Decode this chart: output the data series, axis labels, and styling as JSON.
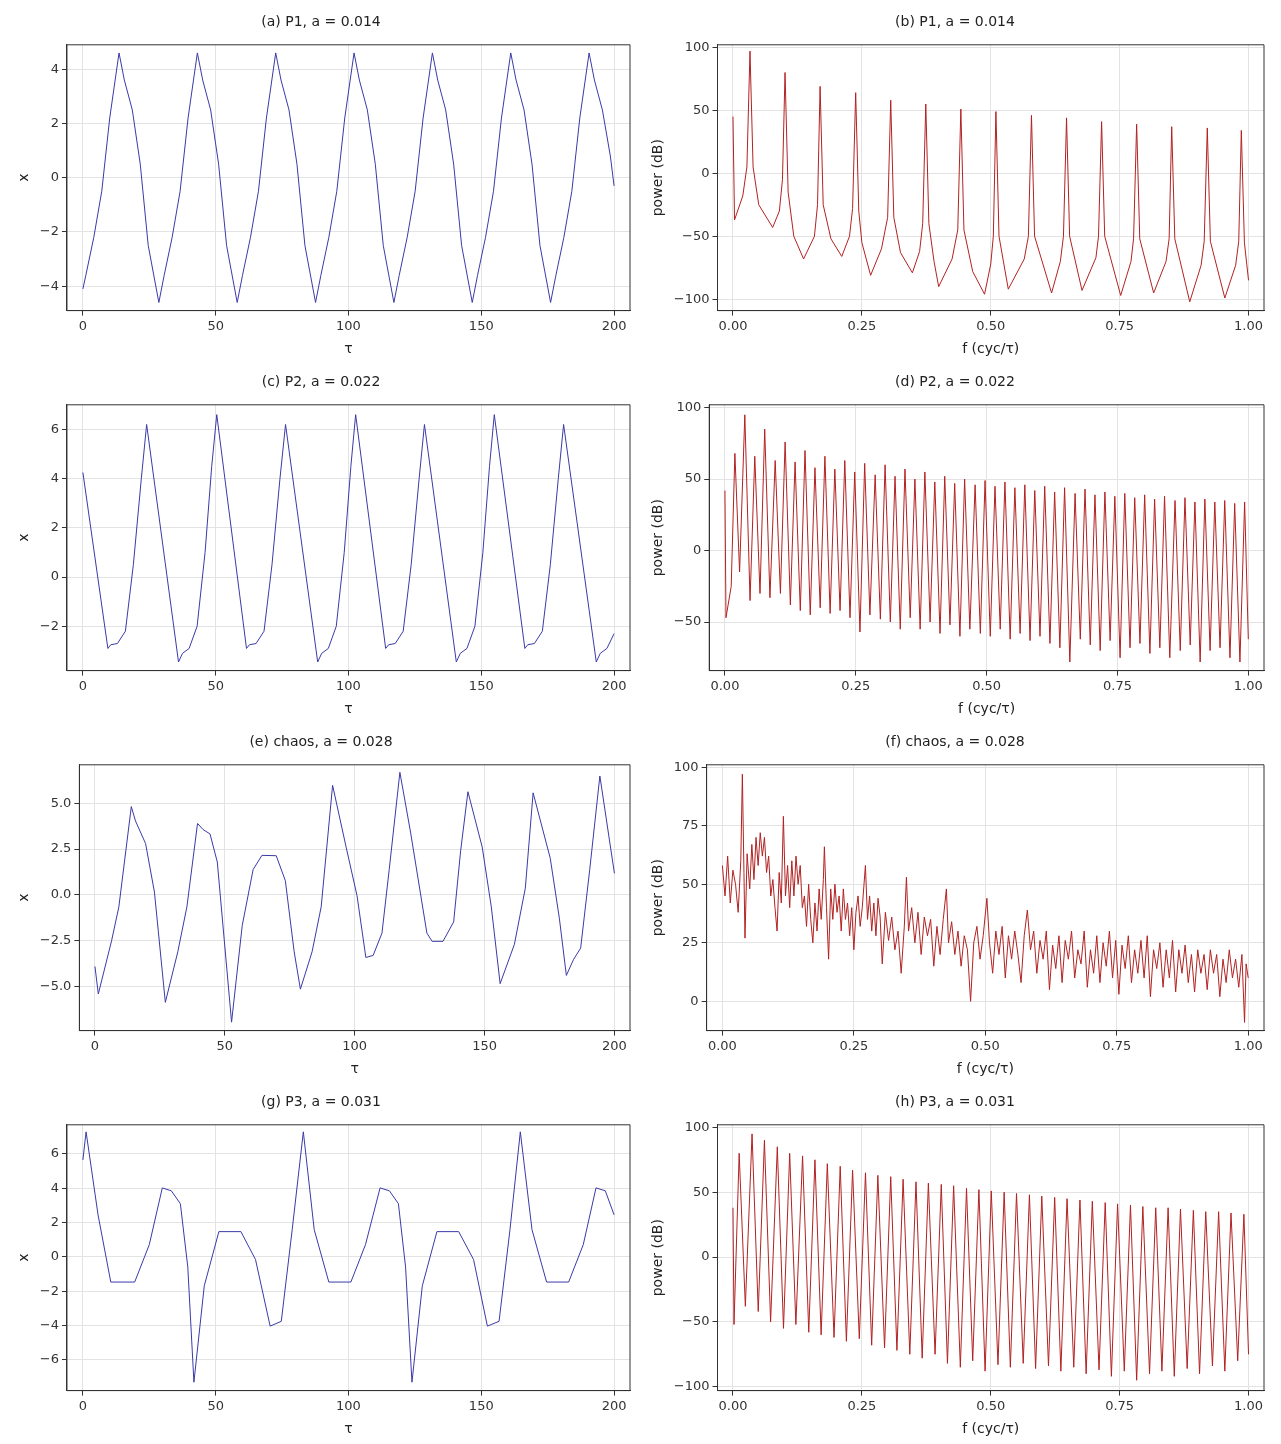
{
  "chart_data": [
    {
      "type": "line",
      "title": "(a) P1, a = 0.014",
      "xlabel": "τ",
      "ylabel": "x",
      "color": "#3a3aa8",
      "grid": true,
      "xlim": [
        -6,
        206
      ],
      "ylim": [
        -4.9,
        4.9
      ],
      "xticks": [
        0,
        50,
        100,
        150,
        200
      ],
      "yticks": [
        {
          "value": -4,
          "label": "−4"
        },
        {
          "value": -2,
          "label": "−2"
        },
        0,
        2,
        4
      ],
      "x": [
        0,
        1.1,
        4.1,
        7.1,
        10.1,
        13.6,
        15.6,
        18.6,
        21.6,
        24.6,
        28.6,
        30.6,
        33.6,
        36.6,
        39.6,
        43.1,
        45.1,
        48.1,
        51.1,
        54.1,
        58.1,
        60.1,
        63.1,
        66.1,
        69.1,
        72.6,
        74.6,
        77.6,
        80.6,
        83.6,
        87.6,
        89.6,
        92.6,
        95.6,
        98.6,
        102.1,
        104.1,
        107.1,
        110.1,
        113.1,
        117.1,
        119.1,
        122.1,
        125.1,
        128.1,
        131.6,
        133.6,
        136.6,
        139.6,
        142.6,
        146.6,
        148.6,
        151.6,
        154.6,
        157.6,
        161.1,
        163.1,
        166.1,
        169.1,
        172.1,
        176.1,
        178.1,
        181.1,
        184.1,
        187.1,
        190.6,
        192.6,
        195.6,
        198.6,
        200
      ],
      "values": [
        -4.1,
        -3.6,
        -2.2,
        -0.5,
        2.2,
        4.6,
        3.6,
        2.5,
        0.5,
        -2.5,
        -4.6,
        -3.6,
        -2.2,
        -0.5,
        2.2,
        4.6,
        3.6,
        2.5,
        0.5,
        -2.5,
        -4.6,
        -3.6,
        -2.2,
        -0.5,
        2.2,
        4.6,
        3.6,
        2.5,
        0.5,
        -2.5,
        -4.6,
        -3.6,
        -2.2,
        -0.5,
        2.2,
        4.6,
        3.6,
        2.5,
        0.5,
        -2.5,
        -4.6,
        -3.6,
        -2.2,
        -0.5,
        2.2,
        4.6,
        3.6,
        2.5,
        0.5,
        -2.5,
        -4.6,
        -3.6,
        -2.2,
        -0.5,
        2.2,
        4.6,
        3.6,
        2.5,
        0.5,
        -2.5,
        -4.6,
        -3.6,
        -2.2,
        -0.5,
        2.2,
        4.6,
        3.6,
        2.5,
        0.8,
        -0.3
      ]
    },
    {
      "type": "line",
      "title": "(b) P1, a = 0.014",
      "xlabel": "f (cyc/τ)",
      "ylabel": "power (dB)",
      "color": "#b22222",
      "grid": true,
      "xlim": [
        -0.03,
        1.03
      ],
      "ylim": [
        -109,
        102
      ],
      "xticks": [
        {
          "value": 0,
          "label": "0.00"
        },
        {
          "value": 0.25,
          "label": "0.25"
        },
        {
          "value": 0.5,
          "label": "0.50"
        },
        {
          "value": 0.75,
          "label": "0.75"
        },
        {
          "value": 1,
          "label": "1.00"
        }
      ],
      "yticks": [
        {
          "value": -100,
          "label": "−100"
        },
        {
          "value": -50,
          "label": "−50"
        },
        0,
        50,
        100
      ],
      "x": [
        0,
        0.003,
        0.019,
        0.027,
        0.033,
        0.039,
        0.05,
        0.077,
        0.09,
        0.096,
        0.101,
        0.107,
        0.118,
        0.137,
        0.158,
        0.164,
        0.169,
        0.175,
        0.19,
        0.211,
        0.226,
        0.232,
        0.238,
        0.244,
        0.25,
        0.267,
        0.288,
        0.3,
        0.306,
        0.312,
        0.325,
        0.348,
        0.362,
        0.368,
        0.374,
        0.38,
        0.39,
        0.399,
        0.425,
        0.436,
        0.442,
        0.448,
        0.465,
        0.488,
        0.5,
        0.505,
        0.51,
        0.516,
        0.534,
        0.565,
        0.573,
        0.579,
        0.585,
        0.618,
        0.635,
        0.641,
        0.647,
        0.653,
        0.677,
        0.704,
        0.709,
        0.715,
        0.721,
        0.752,
        0.772,
        0.777,
        0.783,
        0.789,
        0.816,
        0.84,
        0.846,
        0.851,
        0.857,
        0.886,
        0.908,
        0.914,
        0.92,
        0.926,
        0.954,
        0.975,
        0.981,
        0.986,
        0.992,
        1
      ],
      "values": [
        45,
        -37,
        -18,
        5,
        97,
        5,
        -25,
        -43,
        -30,
        -5,
        80,
        -15,
        -50,
        -68,
        -50,
        -25,
        69,
        -25,
        -52,
        -66,
        -50,
        -28,
        64,
        -30,
        -55,
        -81,
        -60,
        -35,
        58,
        -35,
        -63,
        -79,
        -62,
        -40,
        55,
        -40,
        -70,
        -90,
        -68,
        -45,
        51,
        -45,
        -78,
        -96,
        -72,
        -50,
        49,
        -50,
        -92,
        -68,
        -50,
        46,
        -50,
        -95,
        -70,
        -50,
        44,
        -50,
        -93,
        -67,
        -50,
        41,
        -50,
        -97,
        -70,
        -52,
        39,
        -52,
        -95,
        -70,
        -52,
        37,
        -52,
        -102,
        -73,
        -54,
        36,
        -54,
        -99,
        -73,
        -54,
        34,
        -55,
        -85
      ]
    },
    {
      "type": "line",
      "title": "(c) P2, a = 0.022",
      "xlabel": "τ",
      "ylabel": "x",
      "color": "#3a3aa8",
      "grid": true,
      "xlim": [
        -6,
        206
      ],
      "ylim": [
        -3.8,
        7
      ],
      "xticks": [
        0,
        50,
        100,
        150,
        200
      ],
      "yticks": [
        {
          "value": -2,
          "label": "−2"
        },
        0,
        2,
        4,
        6
      ],
      "x": [
        0,
        9.4,
        10.5,
        13,
        16,
        19,
        22,
        24,
        36,
        37.5,
        40,
        43,
        46,
        48.5,
        50.4,
        61.6,
        62.7,
        65.2,
        68.2,
        71.2,
        74.2,
        76.3,
        88.4,
        89.9,
        92.4,
        95.4,
        98.4,
        100.9,
        102.7,
        114,
        115.1,
        117.6,
        120.6,
        123.6,
        126.6,
        128.6,
        140.6,
        142.1,
        144.6,
        147.6,
        150.6,
        153.1,
        154.9,
        166.4,
        167.5,
        170,
        173,
        176,
        179,
        181,
        193.3,
        194.8,
        197.3,
        200
      ],
      "values": [
        4.25,
        -2.9,
        -2.75,
        -2.7,
        -2.2,
        0.5,
        4,
        6.2,
        -3.45,
        -3.1,
        -2.9,
        -2,
        1,
        4.5,
        6.6,
        -2.9,
        -2.75,
        -2.7,
        -2.2,
        0.5,
        4,
        6.2,
        -3.45,
        -3.1,
        -2.9,
        -2,
        1,
        4.5,
        6.6,
        -2.9,
        -2.75,
        -2.7,
        -2.2,
        0.5,
        4,
        6.2,
        -3.45,
        -3.1,
        -2.9,
        -2,
        1,
        4.5,
        6.6,
        -2.9,
        -2.75,
        -2.7,
        -2.2,
        0.5,
        4,
        6.2,
        -3.45,
        -3.1,
        -2.9,
        -2.3
      ]
    },
    {
      "type": "line",
      "title": "(d) P2, a = 0.022",
      "xlabel": "f (cyc/τ)",
      "ylabel": "power (dB)",
      "color": "#b22222",
      "grid": true,
      "xlim": [
        -0.03,
        1.03
      ],
      "ylim": [
        -84,
        102
      ],
      "xticks": [
        {
          "value": 0,
          "label": "0.00"
        },
        {
          "value": 0.25,
          "label": "0.25"
        },
        {
          "value": 0.5,
          "label": "0.50"
        },
        {
          "value": 0.75,
          "label": "0.75"
        },
        {
          "value": 1,
          "label": "1.00"
        }
      ],
      "yticks": [
        {
          "value": -50,
          "label": "−50"
        },
        0,
        50,
        100
      ],
      "x": [
        0,
        0.002,
        0.012,
        0.019,
        0.028,
        0.038,
        0.048,
        0.057,
        0.067,
        0.076,
        0.086,
        0.096,
        0.106,
        0.115,
        0.125,
        0.134,
        0.144,
        0.153,
        0.163,
        0.172,
        0.182,
        0.191,
        0.201,
        0.21,
        0.22,
        0.229,
        0.239,
        0.248,
        0.258,
        0.267,
        0.277,
        0.287,
        0.297,
        0.306,
        0.316,
        0.325,
        0.335,
        0.344,
        0.354,
        0.363,
        0.373,
        0.382,
        0.392,
        0.401,
        0.411,
        0.42,
        0.43,
        0.439,
        0.449,
        0.458,
        0.468,
        0.478,
        0.488,
        0.497,
        0.507,
        0.516,
        0.526,
        0.535,
        0.545,
        0.554,
        0.564,
        0.573,
        0.583,
        0.592,
        0.602,
        0.611,
        0.621,
        0.63,
        0.64,
        0.649,
        0.659,
        0.669,
        0.679,
        0.688,
        0.698,
        0.707,
        0.717,
        0.726,
        0.736,
        0.745,
        0.755,
        0.764,
        0.774,
        0.783,
        0.793,
        0.802,
        0.812,
        0.821,
        0.831,
        0.84,
        0.85,
        0.86,
        0.87,
        0.879,
        0.889,
        0.898,
        0.908,
        0.917,
        0.927,
        0.936,
        0.946,
        0.955,
        0.965,
        0.974,
        0.984,
        0.993,
        1
      ],
      "values": [
        42,
        -47,
        -25,
        68,
        -15,
        95,
        -35,
        66,
        -30,
        85,
        -33,
        63,
        -30,
        76,
        -38,
        62,
        -42,
        70,
        -45,
        58,
        -40,
        66,
        -44,
        57,
        -42,
        63,
        -47,
        55,
        -57,
        61,
        -45,
        53,
        -48,
        60,
        -50,
        52,
        -55,
        57,
        -47,
        50,
        -55,
        55,
        -50,
        48,
        -58,
        52,
        -52,
        47,
        -60,
        50,
        -55,
        46,
        -58,
        49,
        -60,
        45,
        -55,
        48,
        -62,
        44,
        -58,
        46,
        -63,
        42,
        -60,
        45,
        -65,
        41,
        -68,
        44,
        -78,
        40,
        -62,
        43,
        -66,
        39,
        -70,
        41,
        -63,
        38,
        -75,
        40,
        -68,
        37,
        -65,
        39,
        -72,
        36,
        -68,
        38,
        -75,
        35,
        -70,
        37,
        -66,
        34,
        -78,
        36,
        -70,
        34,
        -68,
        35,
        -75,
        33,
        -78,
        34,
        -62
      ]
    },
    {
      "type": "line",
      "title": "(e) chaos, a = 0.028",
      "xlabel": "τ",
      "ylabel": "x",
      "color": "#3a3aa8",
      "grid": true,
      "xlim": [
        -6,
        206
      ],
      "ylim": [
        -7.4,
        7.1
      ],
      "xticks": [
        0,
        50,
        100,
        150,
        200
      ],
      "yticks": [
        {
          "value": -5,
          "label": "−5.0"
        },
        {
          "value": -2.5,
          "label": "−2.5"
        },
        {
          "value": 0,
          "label": "0.0"
        },
        {
          "value": 2.5,
          "label": "2.5"
        },
        {
          "value": 5,
          "label": "5.0"
        }
      ],
      "x": [
        0,
        1.3,
        6.4,
        9.2,
        14,
        15.6,
        19.5,
        22.9,
        27.1,
        31.9,
        35.4,
        39.5,
        41.6,
        44.3,
        47.1,
        52.6,
        56.7,
        60.9,
        64.3,
        69.8,
        73.3,
        76.7,
        79.1,
        83.6,
        87.1,
        91.5,
        96.7,
        100.9,
        104.3,
        107.1,
        110.5,
        113.3,
        117.4,
        121.5,
        127.8,
        129.8,
        134,
        138.1,
        140.8,
        143.6,
        149.1,
        152.6,
        156,
        161.5,
        165.7,
        168.7,
        175.3,
        178.8,
        181.5,
        184.3,
        187,
        190.5,
        194.4,
        200
      ],
      "values": [
        -3.9,
        -5.4,
        -2.5,
        -0.65,
        4.82,
        4.04,
        2.8,
        0.16,
        -5.86,
        -3.1,
        -0.65,
        3.9,
        3.57,
        3.33,
        1.8,
        -6.94,
        -1.67,
        1.39,
        2.16,
        2.14,
        0.78,
        -3.1,
        -5.14,
        -3.1,
        -0.65,
        5.98,
        2.61,
        -0.04,
        -3.41,
        -3.3,
        -2.08,
        1.39,
        6.69,
        3.43,
        -2.08,
        -2.53,
        -2.53,
        -1.47,
        2.41,
        5.63,
        2.61,
        -0.65,
        -4.84,
        -2.69,
        0.37,
        5.57,
        2,
        -1.27,
        -4.39,
        -3.51,
        -2.9,
        1.39,
        6.49,
        1.18
      ]
    },
    {
      "type": "line",
      "title": "(f) chaos, a = 0.028",
      "xlabel": "f (cyc/τ)",
      "ylabel": "power (dB)",
      "color": "#b22222",
      "grid": true,
      "xlim": [
        -0.03,
        1.03
      ],
      "ylim": [
        -12.5,
        101
      ],
      "xticks": [
        {
          "value": 0,
          "label": "0.00"
        },
        {
          "value": 0.25,
          "label": "0.25"
        },
        {
          "value": 0.5,
          "label": "0.50"
        },
        {
          "value": 0.75,
          "label": "0.75"
        },
        {
          "value": 1,
          "label": "1.00"
        }
      ],
      "yticks": [
        0,
        25,
        50,
        75,
        100
      ],
      "x": [
        0,
        0.005,
        0.01,
        0.015,
        0.02,
        0.025,
        0.03,
        0.035,
        0.038,
        0.041,
        0.043,
        0.047,
        0.052,
        0.056,
        0.06,
        0.064,
        0.068,
        0.072,
        0.076,
        0.08,
        0.084,
        0.088,
        0.092,
        0.096,
        0.1,
        0.104,
        0.108,
        0.112,
        0.116,
        0.12,
        0.124,
        0.128,
        0.132,
        0.136,
        0.14,
        0.144,
        0.148,
        0.152,
        0.156,
        0.16,
        0.164,
        0.168,
        0.172,
        0.176,
        0.18,
        0.184,
        0.188,
        0.192,
        0.194,
        0.198,
        0.202,
        0.206,
        0.21,
        0.214,
        0.218,
        0.222,
        0.226,
        0.23,
        0.234,
        0.238,
        0.242,
        0.246,
        0.25,
        0.254,
        0.258,
        0.262,
        0.266,
        0.272,
        0.276,
        0.28,
        0.284,
        0.288,
        0.292,
        0.296,
        0.3,
        0.304,
        0.31,
        0.316,
        0.322,
        0.328,
        0.334,
        0.34,
        0.346,
        0.35,
        0.354,
        0.36,
        0.366,
        0.372,
        0.378,
        0.384,
        0.39,
        0.396,
        0.402,
        0.408,
        0.414,
        0.42,
        0.426,
        0.43,
        0.436,
        0.442,
        0.448,
        0.454,
        0.46,
        0.466,
        0.472,
        0.478,
        0.484,
        0.49,
        0.496,
        0.503,
        0.508,
        0.514,
        0.52,
        0.526,
        0.532,
        0.538,
        0.544,
        0.55,
        0.556,
        0.562,
        0.568,
        0.574,
        0.58,
        0.586,
        0.592,
        0.598,
        0.604,
        0.61,
        0.616,
        0.622,
        0.628,
        0.634,
        0.64,
        0.646,
        0.652,
        0.658,
        0.664,
        0.67,
        0.676,
        0.682,
        0.688,
        0.694,
        0.7,
        0.706,
        0.712,
        0.718,
        0.724,
        0.73,
        0.736,
        0.742,
        0.748,
        0.754,
        0.76,
        0.766,
        0.772,
        0.778,
        0.784,
        0.79,
        0.796,
        0.802,
        0.808,
        0.814,
        0.82,
        0.826,
        0.832,
        0.838,
        0.844,
        0.85,
        0.856,
        0.862,
        0.868,
        0.874,
        0.88,
        0.886,
        0.892,
        0.898,
        0.904,
        0.91,
        0.916,
        0.922,
        0.928,
        0.934,
        0.94,
        0.946,
        0.952,
        0.958,
        0.964,
        0.97,
        0.976,
        0.982,
        0.988,
        0.993,
        0.996,
        1
      ],
      "values": [
        58,
        45,
        62,
        42,
        56,
        50,
        38,
        60,
        97,
        55,
        27,
        63,
        48,
        67,
        52,
        70,
        58,
        72,
        62,
        70,
        55,
        62,
        45,
        52,
        40,
        30,
        55,
        42,
        79,
        45,
        58,
        40,
        60,
        45,
        62,
        50,
        58,
        40,
        45,
        32,
        50,
        35,
        25,
        42,
        30,
        48,
        35,
        52,
        66,
        40,
        18,
        48,
        35,
        50,
        38,
        45,
        30,
        48,
        35,
        42,
        28,
        40,
        22,
        38,
        45,
        32,
        40,
        58,
        35,
        45,
        30,
        42,
        28,
        44,
        36,
        16,
        38,
        26,
        36,
        22,
        30,
        12,
        32,
        53,
        30,
        40,
        25,
        38,
        20,
        36,
        28,
        35,
        15,
        32,
        20,
        35,
        48,
        25,
        34,
        20,
        30,
        15,
        28,
        22,
        0,
        25,
        32,
        18,
        28,
        44,
        25,
        12,
        30,
        20,
        32,
        10,
        28,
        18,
        30,
        20,
        8,
        28,
        39,
        22,
        30,
        12,
        26,
        18,
        30,
        5,
        24,
        14,
        28,
        8,
        26,
        18,
        30,
        10,
        22,
        16,
        30,
        6,
        22,
        12,
        28,
        8,
        25,
        15,
        30,
        10,
        26,
        3,
        24,
        14,
        28,
        8,
        22,
        12,
        26,
        10,
        28,
        2,
        22,
        14,
        25,
        6,
        22,
        10,
        26,
        4,
        22,
        12,
        24,
        8,
        20,
        4,
        22,
        12,
        20,
        5,
        22,
        12,
        20,
        2,
        18,
        8,
        22,
        10,
        18,
        6,
        20,
        -9,
        16,
        10
      ]
    },
    {
      "type": "line",
      "title": "(g) P3, a = 0.031",
      "xlabel": "τ",
      "ylabel": "x",
      "color": "#3a3aa8",
      "grid": true,
      "xlim": [
        -6,
        206
      ],
      "ylim": [
        -7.8,
        7.7
      ],
      "xticks": [
        0,
        50,
        100,
        150,
        200
      ],
      "yticks": [
        {
          "value": -6,
          "label": "−6"
        },
        {
          "value": -4,
          "label": "−4"
        },
        {
          "value": -2,
          "label": "−2"
        },
        0,
        2,
        4,
        6
      ],
      "x": [
        0,
        1.2,
        5.7,
        10.5,
        19.5,
        25,
        29.9,
        33.3,
        36.7,
        39.5,
        41.8,
        45.7,
        51.2,
        59.5,
        65,
        70.5,
        74.7,
        78.8,
        83,
        87.1,
        92.6,
        100.9,
        106.4,
        111.9,
        115.4,
        118.8,
        121.5,
        123.9,
        127.8,
        133.3,
        141.5,
        147.1,
        152.3,
        156.7,
        160.8,
        164.7,
        169.1,
        174.6,
        182.9,
        188.4,
        193.2,
        196.7,
        200
      ],
      "values": [
        5.65,
        7.29,
        2.45,
        -1.47,
        -1.47,
        0.71,
        4.02,
        3.85,
        3.1,
        -0.6,
        -7.31,
        -1.69,
        1.47,
        1.47,
        -0.16,
        -4.04,
        -3.76,
        1.58,
        7.29,
        1.58,
        -1.47,
        -1.47,
        0.71,
        4.02,
        3.85,
        3.1,
        -0.6,
        -7.31,
        -1.69,
        1.47,
        1.47,
        -0.16,
        -4.04,
        -3.76,
        1.58,
        7.29,
        1.58,
        -1.47,
        -1.47,
        0.71,
        4.02,
        3.85,
        2.45
      ]
    },
    {
      "type": "line",
      "title": "(h) P3, a = 0.031",
      "xlabel": "f (cyc/τ)",
      "ylabel": "power (dB)",
      "color": "#b22222",
      "grid": true,
      "xlim": [
        -0.03,
        1.03
      ],
      "ylim": [
        -103,
        102
      ],
      "xticks": [
        {
          "value": 0,
          "label": "0.00"
        },
        {
          "value": 0.25,
          "label": "0.25"
        },
        {
          "value": 0.5,
          "label": "0.50"
        },
        {
          "value": 0.75,
          "label": "0.75"
        },
        {
          "value": 1,
          "label": "1.00"
        }
      ],
      "yticks": [
        {
          "value": -100,
          "label": "−100"
        },
        {
          "value": -50,
          "label": "−50"
        },
        0,
        50,
        100
      ],
      "x": [
        0,
        0.002,
        0.012,
        0.024,
        0.037,
        0.049,
        0.061,
        0.073,
        0.086,
        0.098,
        0.11,
        0.122,
        0.135,
        0.147,
        0.159,
        0.171,
        0.183,
        0.196,
        0.208,
        0.22,
        0.232,
        0.245,
        0.257,
        0.269,
        0.281,
        0.294,
        0.306,
        0.318,
        0.33,
        0.343,
        0.355,
        0.367,
        0.379,
        0.392,
        0.404,
        0.416,
        0.428,
        0.441,
        0.453,
        0.465,
        0.477,
        0.489,
        0.501,
        0.514,
        0.526,
        0.538,
        0.55,
        0.563,
        0.575,
        0.587,
        0.599,
        0.612,
        0.624,
        0.636,
        0.648,
        0.661,
        0.673,
        0.685,
        0.697,
        0.71,
        0.722,
        0.734,
        0.746,
        0.759,
        0.771,
        0.783,
        0.795,
        0.808,
        0.82,
        0.832,
        0.844,
        0.856,
        0.868,
        0.881,
        0.893,
        0.905,
        0.917,
        0.93,
        0.942,
        0.954,
        0.966,
        0.979,
        0.991,
        1
      ],
      "values": [
        38,
        -52,
        80,
        -38,
        95,
        -42,
        90,
        -50,
        85,
        -55,
        80,
        -52,
        78,
        -58,
        75,
        -60,
        72,
        -62,
        70,
        -65,
        67,
        -63,
        65,
        -68,
        63,
        -70,
        62,
        -72,
        60,
        -75,
        58,
        -78,
        57,
        -75,
        56,
        -82,
        55,
        -85,
        53,
        -80,
        52,
        -88,
        51,
        -83,
        50,
        -85,
        49,
        -82,
        48,
        -86,
        47,
        -84,
        46,
        -88,
        45,
        -85,
        44,
        -90,
        43,
        -87,
        42,
        -92,
        41,
        -88,
        40,
        -95,
        39,
        -90,
        38,
        -88,
        38,
        -92,
        37,
        -86,
        36,
        -90,
        35,
        -84,
        35,
        -88,
        34,
        -80,
        33,
        -75
      ]
    }
  ]
}
